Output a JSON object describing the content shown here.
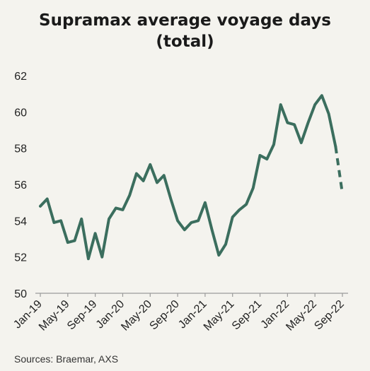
{
  "title_lines": [
    "Supramax average voyage days",
    "(total)"
  ],
  "source": "Sources: Braemar, AXS",
  "colors": {
    "line": "#3b6e5e",
    "axis": "#9a9a9a",
    "background": "#f4f3ee"
  },
  "chart_data": {
    "type": "line",
    "title": "Supramax average voyage days (total)",
    "xlabel": "",
    "ylabel": "",
    "ylim": [
      50,
      62
    ],
    "yticks": [
      50,
      52,
      54,
      56,
      58,
      60,
      62
    ],
    "grid": false,
    "legend": "none",
    "x_tick_labels": [
      "Jan-19",
      "May-19",
      "Sep-19",
      "Jan-20",
      "May-20",
      "Sep-20",
      "Jan-21",
      "May-21",
      "Sep-21",
      "Jan-22",
      "May-22",
      "Sep-22"
    ],
    "x": [
      "Jan-19",
      "Feb-19",
      "Mar-19",
      "Apr-19",
      "May-19",
      "Jun-19",
      "Jul-19",
      "Aug-19",
      "Sep-19",
      "Oct-19",
      "Nov-19",
      "Dec-19",
      "Jan-20",
      "Feb-20",
      "Mar-20",
      "Apr-20",
      "May-20",
      "Jun-20",
      "Jul-20",
      "Aug-20",
      "Sep-20",
      "Oct-20",
      "Nov-20",
      "Dec-20",
      "Jan-21",
      "Feb-21",
      "Mar-21",
      "Apr-21",
      "May-21",
      "Jun-21",
      "Jul-21",
      "Aug-21",
      "Sep-21",
      "Oct-21",
      "Nov-21",
      "Dec-21",
      "Jan-22",
      "Feb-22",
      "Mar-22",
      "Apr-22",
      "May-22",
      "Jun-22",
      "Jul-22",
      "Aug-22",
      "Sep-22"
    ],
    "series": [
      {
        "values": [
          54.8,
          55.2,
          53.9,
          54.0,
          52.8,
          52.9,
          54.1,
          51.9,
          53.3,
          52.0,
          54.1,
          54.7,
          54.6,
          55.4,
          56.6,
          56.2,
          57.1,
          56.1,
          56.5,
          55.2,
          54.0,
          53.5,
          53.9,
          54.0,
          55.0,
          53.5,
          52.1,
          52.7,
          54.2,
          54.6,
          54.9,
          55.8,
          57.6,
          57.4,
          58.2,
          60.4,
          59.4,
          59.3,
          58.3,
          59.4,
          60.4,
          60.9,
          59.9,
          58.1,
          55.5
        ],
        "dashed_from_index": 43
      }
    ]
  }
}
